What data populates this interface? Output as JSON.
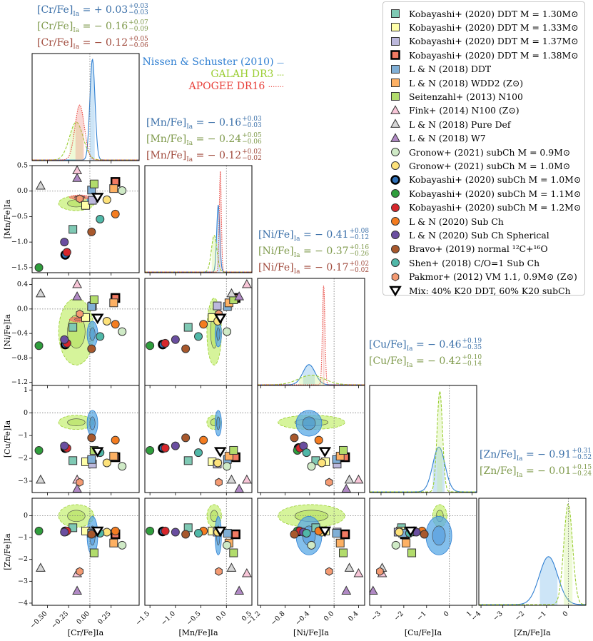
{
  "colors": {
    "nissen": "#2f7fd2",
    "galah": "#9acd32",
    "apogee": "#e8403a",
    "ann_blue": "#3a6fa8",
    "ann_green": "#7f9a4c",
    "ann_red": "#a04a3c",
    "fill_blue": "#5aa9e6",
    "fill_green": "#c8f07a",
    "fill_red": "#f07a70"
  },
  "series_labels": [
    {
      "name": "Nissen & Schuster (2010)",
      "style": "—",
      "color_key": "nissen"
    },
    {
      "name": "GALAH DR3",
      "style": "---",
      "color_key": "galah"
    },
    {
      "name": "APOGEE DR16",
      "style": "·······",
      "color_key": "apogee"
    }
  ],
  "annotations": [
    {
      "id": "cr",
      "elem": "Cr",
      "rows": [
        {
          "color_key": "ann_blue",
          "sign": "= +",
          "val": "0.03",
          "up": "+0.03",
          "dn": "−0.03"
        },
        {
          "color_key": "ann_green",
          "sign": "= −",
          "val": "0.16",
          "up": "+0.07",
          "dn": "−0.09"
        },
        {
          "color_key": "ann_red",
          "sign": "= −",
          "val": "0.12",
          "up": "+0.05",
          "dn": "−0.06"
        }
      ]
    },
    {
      "id": "mn",
      "elem": "Mn",
      "rows": [
        {
          "color_key": "ann_blue",
          "sign": "= −",
          "val": "0.16",
          "up": "+0.03",
          "dn": "−0.03"
        },
        {
          "color_key": "ann_green",
          "sign": "= −",
          "val": "0.24",
          "up": "+0.05",
          "dn": "−0.06"
        },
        {
          "color_key": "ann_red",
          "sign": "= −",
          "val": "0.12",
          "up": "+0.02",
          "dn": "−0.02"
        }
      ]
    },
    {
      "id": "ni",
      "elem": "Ni",
      "rows": [
        {
          "color_key": "ann_blue",
          "sign": "= −",
          "val": "0.41",
          "up": "+0.08",
          "dn": "−0.12"
        },
        {
          "color_key": "ann_green",
          "sign": "= −",
          "val": "0.37",
          "up": "+0.16",
          "dn": "−0.26"
        },
        {
          "color_key": "ann_red",
          "sign": "= −",
          "val": "0.17",
          "up": "+0.02",
          "dn": "−0.02"
        }
      ]
    },
    {
      "id": "cu",
      "elem": "Cu",
      "rows": [
        {
          "color_key": "ann_blue",
          "sign": "= −",
          "val": "0.46",
          "up": "+0.19",
          "dn": "−0.35"
        },
        {
          "color_key": "ann_green",
          "sign": "= −",
          "val": "0.42",
          "up": "+0.10",
          "dn": "−0.14"
        }
      ]
    },
    {
      "id": "zn",
      "elem": "Zn",
      "rows": [
        {
          "color_key": "ann_blue",
          "sign": "= −",
          "val": "0.91",
          "up": "+0.31",
          "dn": "−0.52"
        },
        {
          "color_key": "ann_green",
          "sign": "= −",
          "val": "0.01",
          "up": "+0.15",
          "dn": "−0.24"
        }
      ]
    }
  ],
  "legend": [
    {
      "label": "Kobayashi+ (2020) DDT M = 1.30M⊙",
      "marker": "square",
      "fill": "#7fc9b4",
      "edge": "#333333",
      "lw": 1
    },
    {
      "label": "Kobayashi+ (2020) DDT M = 1.33M⊙",
      "marker": "square",
      "fill": "#ffffa8",
      "edge": "#333333",
      "lw": 1
    },
    {
      "label": "Kobayashi+ (2020) DDT M = 1.37M⊙",
      "marker": "square",
      "fill": "#bcb8dc",
      "edge": "#333333",
      "lw": 1
    },
    {
      "label": "Kobayashi+ (2020) DDT M = 1.38M⊙",
      "marker": "square",
      "fill": "#f27a62",
      "edge": "#000000",
      "lw": 2.5
    },
    {
      "label": "L & N (2018) DDT",
      "marker": "square",
      "fill": "#80afd6",
      "edge": "#333333",
      "lw": 1
    },
    {
      "label": "L & N (2018) WDD2 (Z⊙)",
      "marker": "square",
      "fill": "#fdb063",
      "edge": "#333333",
      "lw": 1
    },
    {
      "label": "Seitenzahl+ (2013) N100",
      "marker": "square",
      "fill": "#b2dc6c",
      "edge": "#333333",
      "lw": 1
    },
    {
      "label": "Fink+ (2014) N100 (Z⊙)",
      "marker": "triangle",
      "fill": "#f8c6d8",
      "edge": "#333333",
      "lw": 1
    },
    {
      "label": "L & N (2018) Pure Def",
      "marker": "triangle",
      "fill": "#d6d6d6",
      "edge": "#333333",
      "lw": 1
    },
    {
      "label": "L & N (2018) W7",
      "marker": "triangle",
      "fill": "#b089c4",
      "edge": "#333333",
      "lw": 1
    },
    {
      "label": "Gronow+ (2021) subCh M = 0.9M⊙",
      "marker": "circle",
      "fill": "#cfeac6",
      "edge": "#333333",
      "lw": 1
    },
    {
      "label": "Gronow+ (2021) subCh M = 1.0M⊙",
      "marker": "circle",
      "fill": "#fde27a",
      "edge": "#333333",
      "lw": 1
    },
    {
      "label": "Kobayashi+ (2020) subCh M = 1.0M⊙",
      "marker": "circle",
      "fill": "#2f6fb6",
      "edge": "#000000",
      "lw": 2.5
    },
    {
      "label": "Kobayashi+ (2020) subCh M = 1.1M⊙",
      "marker": "circle",
      "fill": "#2f9e3c",
      "edge": "#333333",
      "lw": 1
    },
    {
      "label": "Kobayashi+ (2020) subCh M = 1.2M⊙",
      "marker": "circle",
      "fill": "#d7262c",
      "edge": "#333333",
      "lw": 1
    },
    {
      "label": "L & N (2020) Sub Ch",
      "marker": "circle",
      "fill": "#f47c20",
      "edge": "#333333",
      "lw": 1
    },
    {
      "label": "L & N (2020) Sub Ch Spherical",
      "marker": "circle",
      "fill": "#6a4ea0",
      "edge": "#333333",
      "lw": 1
    },
    {
      "label": "Bravo+ (2019) normal ¹²C+¹⁶O",
      "marker": "circle",
      "fill": "#a8582c",
      "edge": "#333333",
      "lw": 1
    },
    {
      "label": "Shen+ (2018) C/O=1 Sub Ch",
      "marker": "circle",
      "fill": "#50b8a8",
      "edge": "#333333",
      "lw": 1
    },
    {
      "label": "Pakmor+ (2012) VM 1.1, 0.9M⊙ (Z⊙)",
      "marker": "hexagon",
      "fill": "#f49a72",
      "edge": "#333333",
      "lw": 1
    },
    {
      "label": "Mix: 40% K20 DDT, 60% K20 subCh",
      "marker": "downtriangle",
      "fill": "#ffffff",
      "edge": "#000000",
      "lw": 2.5
    }
  ],
  "chart_data": {
    "type": "scatter",
    "title": "",
    "variables": [
      "Cr",
      "Mn",
      "Ni",
      "Cu",
      "Zn"
    ],
    "axis_labels": [
      "[Cr/Fe]Ia",
      "[Mn/Fe]Ia",
      "[Ni/Fe]Ia",
      "[Cu/Fe]Ia",
      "[Zn/Fe]Ia"
    ],
    "ranges": {
      "Cr": [
        -0.68,
        0.58
      ],
      "Mn": [
        -1.6,
        0.5
      ],
      "Ni": [
        -1.25,
        0.5
      ],
      "Cu": [
        -3.5,
        1.2
      ],
      "Zn": [
        -4.1,
        0.8
      ]
    },
    "ticks": {
      "Cr": {
        "values": [
          -0.5,
          -0.25,
          0,
          0.25
        ],
        "labels": [
          "−0.50",
          "−0.25",
          "0.00",
          "0.25"
        ]
      },
      "Mn": {
        "values": [
          -1.5,
          -1.0,
          -0.5,
          0
        ],
        "labels": [
          "−1.5",
          "−1.0",
          "−0.5",
          "0.0"
        ]
      },
      "Ni": {
        "values": [
          -1.2,
          -0.8,
          -0.4,
          0,
          0.4
        ],
        "labels": [
          "−1.2",
          "−0.8",
          "−0.4",
          "0.0",
          "0.4"
        ]
      },
      "Cu": {
        "values": [
          -3,
          -2,
          -1,
          0,
          1
        ],
        "labels": [
          "−3",
          "−2",
          "−1",
          "0",
          "1"
        ]
      },
      "Zn": {
        "values": [
          -4,
          -3,
          -2,
          -1,
          0
        ],
        "labels": [
          "−4",
          "−3",
          "−2",
          "−1",
          "0"
        ]
      }
    },
    "bottom_ticks": {
      "Cr": {
        "values": [
          -0.5,
          -0.25,
          0,
          0.25
        ],
        "labels": [
          "−0.50",
          "−0.25",
          "0.00",
          "0.25"
        ]
      },
      "Mn": {
        "values": [
          -1.5,
          -1.0,
          -0.5,
          0,
          0.5
        ],
        "labels": [
          "−1.5",
          "−1.0",
          "−0.5",
          "0.0",
          "0.5"
        ]
      },
      "Ni": {
        "values": [
          -1.2,
          -0.8,
          -0.4,
          0,
          0.4
        ],
        "labels": [
          "−1.2",
          "−0.8",
          "−0.4",
          "0.0",
          "0.4"
        ]
      },
      "Cu": {
        "values": [
          -3,
          -2,
          -1,
          0,
          1
        ],
        "labels": [
          "−3",
          "−2",
          "−1",
          "0",
          "1"
        ]
      },
      "Zn": {
        "values": [
          -4,
          -3,
          -2,
          -1,
          0
        ],
        "labels": [
          "−4",
          "−3",
          "−2",
          "−1",
          "0"
        ]
      }
    },
    "left_ticks": {
      "Mn": {
        "values": [
          0.5,
          0,
          -0.5,
          -1.0,
          -1.5
        ],
        "labels": [
          "0.5",
          "0.0",
          "−0.5",
          "−1.0",
          "−1.5"
        ]
      },
      "Ni": {
        "values": [
          0.4,
          0,
          -0.4,
          -0.8,
          -1.2
        ],
        "labels": [
          "0.4",
          "0.0",
          "−0.4",
          "−0.8",
          "−1.2"
        ]
      },
      "Cu": {
        "values": [
          1,
          0,
          -1,
          -2,
          -3
        ],
        "labels": [
          "1",
          "0",
          "−1",
          "−2",
          "−3"
        ]
      },
      "Zn": {
        "values": [
          0,
          -1,
          -2,
          -3,
          -4
        ],
        "labels": [
          "0",
          "−1",
          "−2",
          "−3",
          "−4"
        ]
      }
    },
    "models": [
      {
        "legend_index": 0,
        "Cr": -0.2,
        "Mn": -0.75,
        "Ni": -0.3,
        "Cu": -2.1,
        "Zn": -0.55
      },
      {
        "legend_index": 1,
        "Cr": -0.05,
        "Mn": -0.28,
        "Ni": -0.14,
        "Cu": -2.15,
        "Zn": -0.7
      },
      {
        "legend_index": 2,
        "Cr": 0.03,
        "Mn": -0.18,
        "Ni": 0.05,
        "Cu": -2.25,
        "Zn": -0.75
      },
      {
        "legend_index": 3,
        "Cr": 0.3,
        "Mn": 0.18,
        "Ni": 0.18,
        "Cu": -1.95,
        "Zn": -0.85
      },
      {
        "legend_index": 4,
        "Cr": 0.02,
        "Mn": 0.02,
        "Ni": 0.04,
        "Cu": -2.05,
        "Zn": -0.8
      },
      {
        "legend_index": 5,
        "Cr": 0.28,
        "Mn": 0.05,
        "Ni": 0.1,
        "Cu": -1.9,
        "Zn": -1.25
      },
      {
        "legend_index": 6,
        "Cr": 0.05,
        "Mn": 0.14,
        "Ni": 0.15,
        "Cu": -1.65,
        "Zn": -1.7
      },
      {
        "legend_index": 7,
        "Cr": -0.15,
        "Mn": 0.4,
        "Ni": 0.4,
        "Cu": -2.95,
        "Zn": -2.65
      },
      {
        "legend_index": 8,
        "Cr": -0.58,
        "Mn": 0.1,
        "Ni": 0.25,
        "Cu": -2.95,
        "Zn": -2.4
      },
      {
        "legend_index": 9,
        "Cr": -0.15,
        "Mn": 0.25,
        "Ni": 0.2,
        "Cu": -3.35,
        "Zn": -3.45
      },
      {
        "legend_index": 10,
        "Cr": 0.38,
        "Mn": 0.01,
        "Ni": -0.37,
        "Cu": -2.35,
        "Zn": -1.35
      },
      {
        "legend_index": 11,
        "Cr": 0.2,
        "Mn": -0.17,
        "Ni": -0.2,
        "Cu": -2.2,
        "Zn": -0.75
      },
      {
        "legend_index": 12,
        "Cr": -0.29,
        "Mn": -1.25,
        "Ni": -0.58,
        "Cu": -1.55,
        "Zn": -0.72
      },
      {
        "legend_index": 13,
        "Cr": -0.6,
        "Mn": -1.5,
        "Ni": -0.6,
        "Cu": -1.65,
        "Zn": -0.7
      },
      {
        "legend_index": 14,
        "Cr": -0.27,
        "Mn": -1.2,
        "Ni": -0.56,
        "Cu": -1.55,
        "Zn": -0.7
      },
      {
        "legend_index": 15,
        "Cr": 0.3,
        "Mn": -0.45,
        "Ni": -0.25,
        "Cu": -1.2,
        "Zn": -0.7
      },
      {
        "legend_index": 16,
        "Cr": -0.3,
        "Mn": -1.0,
        "Ni": -0.5,
        "Cu": -1.45,
        "Zn": -0.75
      },
      {
        "legend_index": 17,
        "Cr": 0.02,
        "Mn": -0.8,
        "Ni": -0.65,
        "Cu": -1.1,
        "Zn": -0.85
      },
      {
        "legend_index": 18,
        "Cr": 0.12,
        "Mn": -0.55,
        "Ni": -0.45,
        "Cu": -1.75,
        "Zn": -0.8
      },
      {
        "legend_index": 19,
        "Cr": -0.12,
        "Mn": -0.15,
        "Ni": -0.08,
        "Cu": -3.05,
        "Zn": -2.55
      },
      {
        "legend_index": 20,
        "Cr": 0.09,
        "Mn": -0.12,
        "Ni": -0.15,
        "Cu": -1.7,
        "Zn": -0.7
      }
    ],
    "distributions": {
      "nissen": {
        "Cr": [
          0.03,
          0.03
        ],
        "Mn": [
          -0.16,
          0.03
        ],
        "Ni": [
          -0.41,
          0.1
        ],
        "Cu": [
          -0.46,
          0.27
        ],
        "Zn": [
          -0.91,
          0.42
        ]
      },
      "galah": {
        "Cr": [
          -0.16,
          0.08
        ],
        "Mn": [
          -0.24,
          0.055
        ],
        "Ni": [
          -0.37,
          0.21
        ],
        "Cu": [
          -0.42,
          0.12
        ],
        "Zn": [
          -0.01,
          0.2
        ]
      },
      "apogee": {
        "Cr": [
          -0.12,
          0.055
        ],
        "Mn": [
          -0.12,
          0.02
        ],
        "Ni": [
          -0.17,
          0.02
        ]
      }
    }
  }
}
